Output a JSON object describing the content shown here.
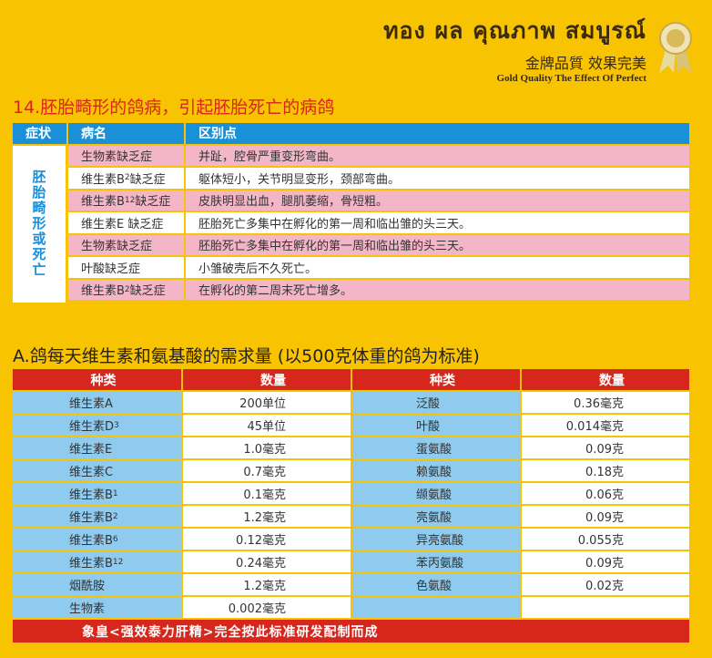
{
  "brand": {
    "thai": "ทอง ผล คุณภาพ สมบูรณ์",
    "cn": "金牌品質  效果完美",
    "en": "Gold Quality  The Effect Of Perfect"
  },
  "section1": {
    "title": "14.胚胎畸形的鸽病，引起胚胎死亡的病鸽",
    "headers": [
      "症状",
      "病名",
      "区别点"
    ],
    "symptom": "胚胎畸形或死亡",
    "rows": [
      {
        "name": "生物素缺乏症",
        "sub": "",
        "suffix": "",
        "diff": "并趾，腔骨严重变形弯曲。"
      },
      {
        "name": "维生素B",
        "sub": "2",
        "suffix": " 缺乏症",
        "diff": "躯体短小，关节明显变形，颈部弯曲。"
      },
      {
        "name": "维生素B",
        "sub": "12",
        "suffix": " 缺乏症",
        "diff": "皮肤明显出血，腿肌萎缩，骨短粗。"
      },
      {
        "name": "维生素E 缺乏症",
        "sub": "",
        "suffix": "",
        "diff": "胚胎死亡多集中在孵化的第一周和临出雏的头三天。"
      },
      {
        "name": "生物素缺乏症",
        "sub": "",
        "suffix": "",
        "diff": "胚胎死亡多集中在孵化的第一周和临出雏的头三天。"
      },
      {
        "name": "叶酸缺乏症",
        "sub": "",
        "suffix": "",
        "diff": "小雏破壳后不久死亡。"
      },
      {
        "name": "维生素B",
        "sub": "2",
        "suffix": " 缺乏症",
        "diff": "在孵化的第二周末死亡增多。"
      }
    ]
  },
  "section2": {
    "title": "A.鸽每天维生素和氨基酸的需求量 (以500克体重的鸽为标准)",
    "headers": [
      "种类",
      "数量",
      "种类",
      "数量"
    ],
    "rows": [
      {
        "k1": "维生素A",
        "s1": "",
        "v1": "200单位",
        "k2": "泛酸",
        "v2": "0.36毫克"
      },
      {
        "k1": "维生素D",
        "s1": "3",
        "v1": "45单位",
        "k2": "叶酸",
        "v2": "0.014毫克"
      },
      {
        "k1": "维生素E",
        "s1": "",
        "v1": "1.0毫克",
        "k2": "蛋氨酸",
        "v2": "0.09克"
      },
      {
        "k1": "维生素C",
        "s1": "",
        "v1": "0.7毫克",
        "k2": "赖氨酸",
        "v2": "0.18克"
      },
      {
        "k1": "维生素B",
        "s1": "1",
        "v1": "0.1毫克",
        "k2": "缬氨酸",
        "v2": "0.06克"
      },
      {
        "k1": "维生素B",
        "s1": "2",
        "v1": "1.2毫克",
        "k2": "亮氨酸",
        "v2": "0.09克"
      },
      {
        "k1": "维生素B",
        "s1": "6",
        "v1": "0.12毫克",
        "k2": "异亮氨酸",
        "v2": "0.055克"
      },
      {
        "k1": "维生素B",
        "s1": "12",
        "v1": "0.24毫克",
        "k2": "苯丙氨酸",
        "v2": "0.09克"
      },
      {
        "k1": "烟酰胺",
        "s1": "",
        "v1": "1.2毫克",
        "k2": "色氨酸",
        "v2": "0.02克"
      },
      {
        "k1": "生物素",
        "s1": "",
        "v1": "0.002毫克",
        "k2": "",
        "v2": ""
      }
    ],
    "footer": "象皇<强效泰力肝精>完全按此标准研发配制而成"
  },
  "colors": {
    "background": "#F8C300",
    "red": "#d7261c",
    "blue": "#1a90d8",
    "pink": "#f3b6c8",
    "lightblue": "#8fcbef"
  }
}
